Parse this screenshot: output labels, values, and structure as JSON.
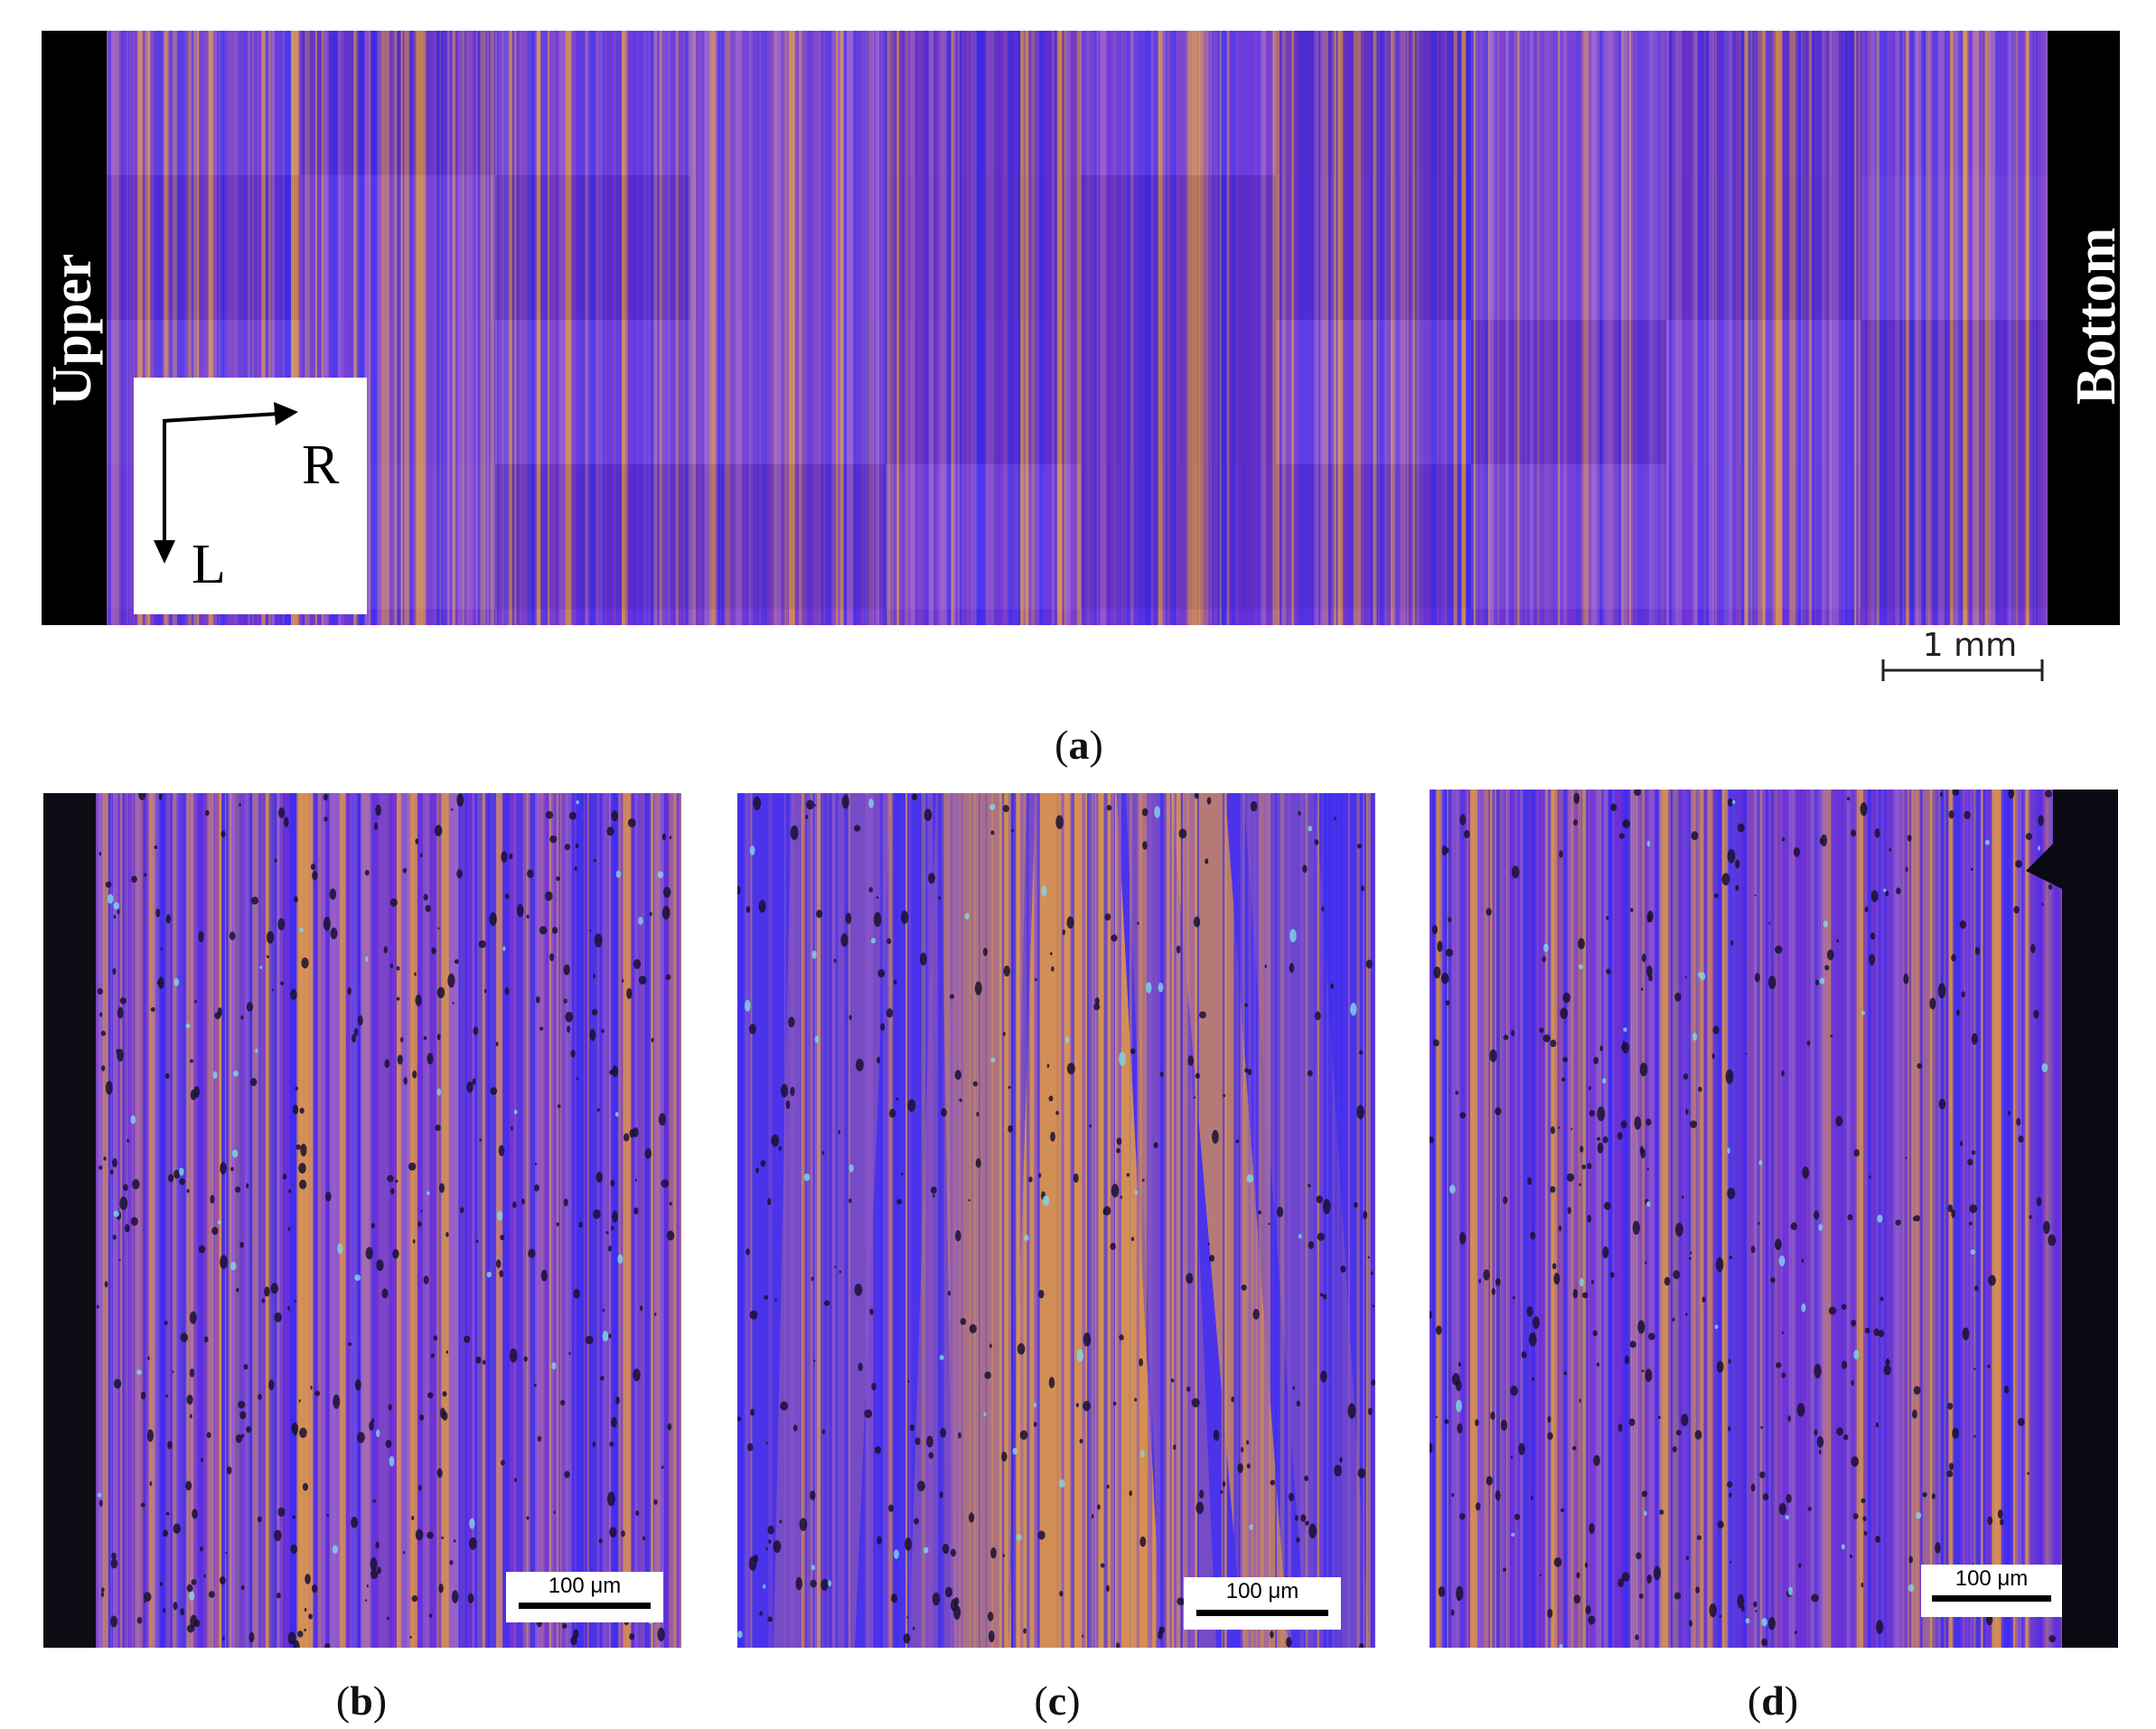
{
  "panel_a": {
    "left_label": "Upper",
    "right_label": "Bottom",
    "axis_r": "R",
    "axis_l": "L",
    "scale_label": "1 mm",
    "caption_letter": "a"
  },
  "panel_b": {
    "scale_label": "100 μm",
    "caption_letter": "b"
  },
  "panel_c": {
    "scale_label": "100 μm",
    "caption_letter": "c"
  },
  "panel_d": {
    "scale_label": "100 μm",
    "caption_letter": "d"
  },
  "colors": {
    "violet": "#6b2fd8",
    "blue": "#3d2cf2",
    "orange": "#d9934f",
    "purple": "#8a4fb8",
    "edge": "#000000"
  }
}
